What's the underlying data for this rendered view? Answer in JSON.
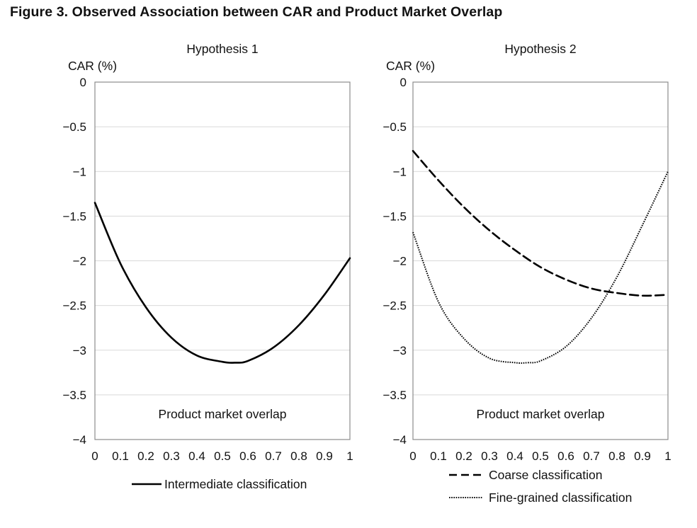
{
  "figure": {
    "title": "Figure 3.  Observed Association between CAR and Product Market Overlap"
  },
  "chart_data": [
    {
      "type": "line",
      "title": "Hypothesis 1",
      "xlabel": "Product market overlap",
      "ylabel": "CAR (%)",
      "xlim": [
        0,
        1
      ],
      "ylim": [
        -4,
        0
      ],
      "xticks": [
        "0",
        "0.1",
        "0.2",
        "0.3",
        "0.4",
        "0.5",
        "0.6",
        "0.7",
        "0.8",
        "0.9",
        "1"
      ],
      "yticks": [
        "0",
        "−0.5",
        "−1",
        "−1.5",
        "−2",
        "−2.5",
        "−3",
        "−3.5",
        "−4"
      ],
      "grid": true,
      "legend_position": "bottom",
      "series": [
        {
          "name": "Intermediate classification",
          "style": "solid",
          "color": "#000000",
          "x": [
            0,
            0.1,
            0.2,
            0.3,
            0.4,
            0.5,
            0.55,
            0.6,
            0.7,
            0.8,
            0.9,
            1
          ],
          "y": [
            -1.35,
            -2.03,
            -2.52,
            -2.86,
            -3.06,
            -3.13,
            -3.14,
            -3.12,
            -2.97,
            -2.72,
            -2.38,
            -1.97
          ]
        }
      ]
    },
    {
      "type": "line",
      "title": "Hypothesis 2",
      "xlabel": "Product market overlap",
      "ylabel": "CAR (%)",
      "xlim": [
        0,
        1
      ],
      "ylim": [
        -4,
        0
      ],
      "xticks": [
        "0",
        "0.1",
        "0.2",
        "0.3",
        "0.4",
        "0.5",
        "0.6",
        "0.7",
        "0.8",
        "0.9",
        "1"
      ],
      "yticks": [
        "0",
        "−0.5",
        "−1",
        "−1.5",
        "−2",
        "−2.5",
        "−3",
        "−3.5",
        "−4"
      ],
      "grid": true,
      "legend_position": "bottom",
      "series": [
        {
          "name": "Coarse classification",
          "style": "dashed",
          "color": "#000000",
          "x": [
            0,
            0.1,
            0.2,
            0.3,
            0.4,
            0.5,
            0.6,
            0.7,
            0.8,
            0.9,
            1
          ],
          "y": [
            -0.77,
            -1.1,
            -1.4,
            -1.66,
            -1.88,
            -2.07,
            -2.21,
            -2.31,
            -2.36,
            -2.39,
            -2.38
          ]
        },
        {
          "name": "Fine-grained classification",
          "style": "dotted",
          "color": "#000000",
          "x": [
            0,
            0.1,
            0.2,
            0.3,
            0.4,
            0.45,
            0.5,
            0.6,
            0.7,
            0.8,
            0.9,
            1
          ],
          "y": [
            -1.68,
            -2.46,
            -2.87,
            -3.09,
            -3.14,
            -3.14,
            -3.12,
            -2.96,
            -2.64,
            -2.18,
            -1.6,
            -1.0
          ]
        }
      ]
    }
  ]
}
